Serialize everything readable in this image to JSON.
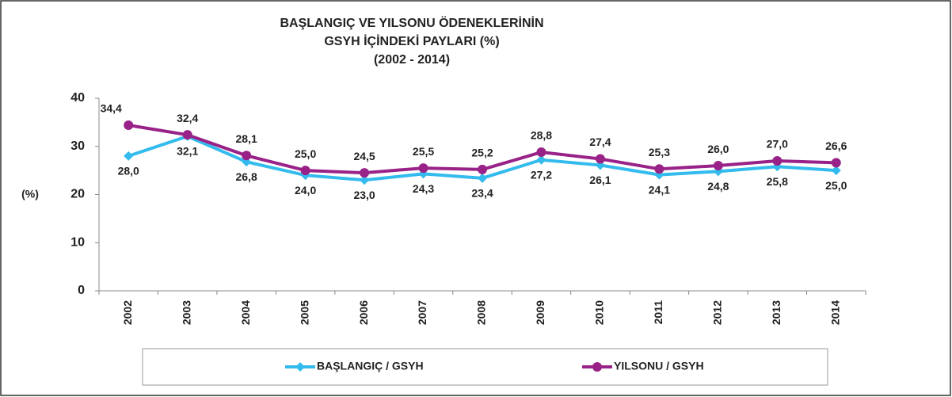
{
  "chart_data": {
    "type": "line",
    "title": [
      "BAŞLANGIÇ VE YILSONU ÖDENEKLERİNİN",
      "GSYH İÇİNDEKİ PAYLARI (%)",
      "(2002 - 2014)"
    ],
    "y_label": "(%)",
    "categories": [
      "2002",
      "2003",
      "2004",
      "2005",
      "2006",
      "2007",
      "2008",
      "2009",
      "2010",
      "2011",
      "2012",
      "2013",
      "2014"
    ],
    "series": [
      {
        "name": "BAŞLANGIÇ / GSYH",
        "color": "#33bbee",
        "marker": "diamond",
        "label_position": "below",
        "values": [
          28.0,
          32.1,
          26.8,
          24.0,
          23.0,
          24.3,
          23.4,
          27.2,
          26.1,
          24.1,
          24.8,
          25.8,
          25.0
        ],
        "value_labels": [
          "28,0",
          "32,1",
          "26,8",
          "24,0",
          "23,0",
          "24,3",
          "23,4",
          "27,2",
          "26,1",
          "24,1",
          "24,8",
          "25,8",
          "25,0"
        ]
      },
      {
        "name": "YILSONU / GSYH",
        "color": "#992288",
        "marker": "circle",
        "label_position": "above",
        "values": [
          34.4,
          32.4,
          28.1,
          25.0,
          24.5,
          25.5,
          25.2,
          28.8,
          27.4,
          25.3,
          26.0,
          27.0,
          26.6
        ],
        "value_labels": [
          "34,4",
          "32,4",
          "28,1",
          "25,0",
          "24,5",
          "25,5",
          "25,2",
          "28,8",
          "27,4",
          "25,3",
          "26,0",
          "27,0",
          "26,6"
        ]
      }
    ],
    "ylim": [
      0,
      40
    ],
    "yticks": [
      0,
      10,
      20,
      30,
      40
    ],
    "grid": false,
    "legend": "bottom"
  }
}
